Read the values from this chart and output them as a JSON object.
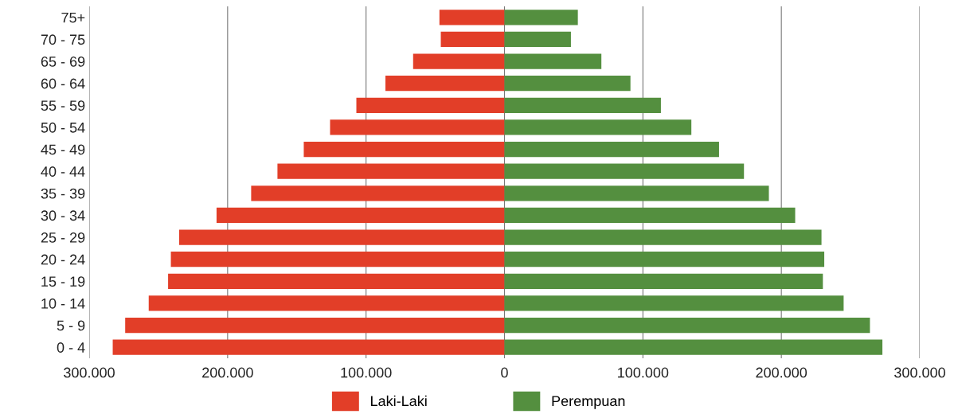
{
  "chart_data": {
    "type": "bar",
    "orientation": "horizontal",
    "stacked": true,
    "categories": [
      "75+",
      "70 - 75",
      "65 - 69",
      "60 - 64",
      "55 - 59",
      "50 - 54",
      "45 - 49",
      "40 - 44",
      "35 - 39",
      "30 - 34",
      "25 - 29",
      "20 - 24",
      "15 - 19",
      "10 - 14",
      "5 - 9",
      "0 - 4"
    ],
    "series": [
      {
        "name": "Laki-Laki",
        "color": "#e23e28",
        "values": [
          -47000,
          -46000,
          -66000,
          -86000,
          -107000,
          -126000,
          -145000,
          -164000,
          -183000,
          -208000,
          -235000,
          -241000,
          -243000,
          -257000,
          -274000,
          -283000
        ]
      },
      {
        "name": "Perempuan",
        "color": "#548f3f",
        "values": [
          53000,
          48000,
          70000,
          91000,
          113000,
          135000,
          155000,
          173000,
          191000,
          210000,
          229000,
          231000,
          230000,
          245000,
          264000,
          273000
        ]
      }
    ],
    "xlim": [
      -300000,
      300000
    ],
    "xticks": [
      {
        "value": -300000,
        "label": "300.000"
      },
      {
        "value": -200000,
        "label": "200.000"
      },
      {
        "value": -100000,
        "label": "100.000"
      },
      0,
      {
        "value": 100000,
        "label": "100.000"
      },
      {
        "value": 200000,
        "label": "200.000"
      },
      {
        "value": 300000,
        "label": "300.000"
      }
    ],
    "grid": "x",
    "legend": "bottom"
  }
}
